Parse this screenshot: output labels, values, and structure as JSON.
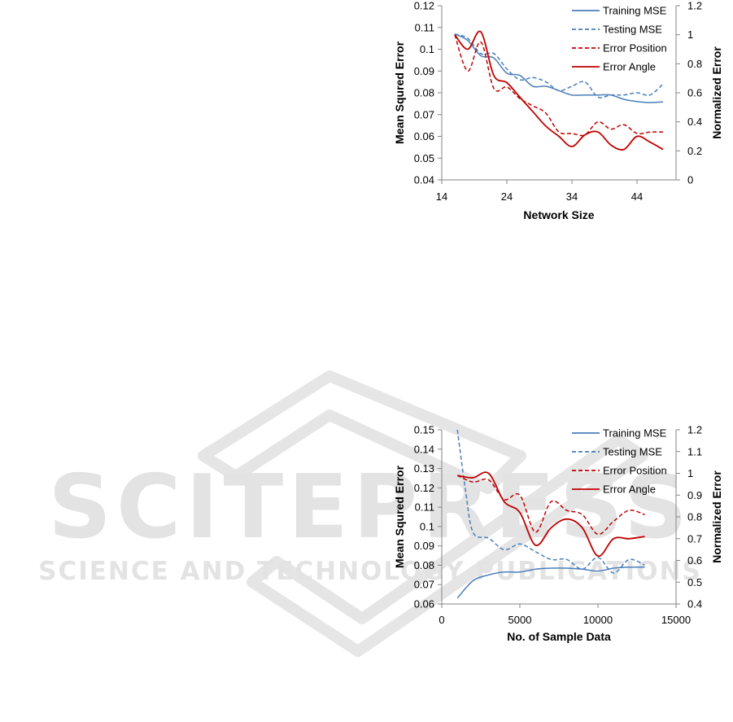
{
  "watermark": {
    "main_text": "SCITEPRESS",
    "sub_text": "SCIENCE AND TECHNOLOGY PUBLICATIONS",
    "color": "#d9d9d9"
  },
  "colors": {
    "training": "#4a7ebb",
    "testing": "#4a7ebb",
    "position": "#c00000",
    "angle": "#c00000"
  },
  "chart_data": [
    {
      "type": "line",
      "xlabel": "Network Size",
      "ylabel": "Mean Squred Error",
      "y2label": "Normalized Error",
      "xlim": [
        14,
        50
      ],
      "xticks": [
        14,
        24,
        34,
        44
      ],
      "ylim": [
        0.04,
        0.12
      ],
      "yticks": [
        "0.04",
        "0.05",
        "0.06",
        "0.07",
        "0.08",
        "0.09",
        "0.1",
        "0.11",
        "0.12"
      ],
      "y2lim": [
        0,
        1.2
      ],
      "y2ticks": [
        "0",
        "0.2",
        "0.4",
        "0.6",
        "0.8",
        "1",
        "1.2"
      ],
      "legend_position": "top-right",
      "series": [
        {
          "name": "Training MSE",
          "axis": "y",
          "style": "solid",
          "color_key": "training",
          "x": [
            16,
            18,
            20,
            22,
            24,
            26,
            28,
            30,
            32,
            34,
            36,
            38,
            40,
            42,
            44,
            46,
            48
          ],
          "y": [
            0.107,
            0.104,
            0.097,
            0.096,
            0.089,
            0.088,
            0.083,
            0.083,
            0.081,
            0.079,
            0.079,
            0.079,
            0.079,
            0.077,
            0.076,
            0.0755,
            0.0758
          ]
        },
        {
          "name": "Testing MSE",
          "axis": "y",
          "style": "dashed",
          "color_key": "testing",
          "x": [
            16,
            18,
            20,
            22,
            24,
            26,
            28,
            30,
            32,
            34,
            36,
            38,
            40,
            42,
            44,
            46,
            48
          ],
          "y": [
            0.107,
            0.105,
            0.098,
            0.098,
            0.091,
            0.086,
            0.087,
            0.085,
            0.081,
            0.083,
            0.085,
            0.078,
            0.079,
            0.079,
            0.08,
            0.079,
            0.084
          ]
        },
        {
          "name": "Error Position",
          "axis": "y2",
          "style": "dashed",
          "color_key": "position",
          "x": [
            16,
            18,
            20,
            22,
            24,
            26,
            28,
            30,
            32,
            34,
            36,
            38,
            40,
            42,
            44,
            46,
            48
          ],
          "y": [
            1.0,
            0.75,
            0.95,
            0.63,
            0.64,
            0.56,
            0.51,
            0.46,
            0.33,
            0.32,
            0.31,
            0.4,
            0.35,
            0.38,
            0.32,
            0.33,
            0.33
          ]
        },
        {
          "name": "Error Angle",
          "axis": "y2",
          "style": "solid",
          "color_key": "angle",
          "x": [
            16,
            18,
            20,
            22,
            24,
            26,
            28,
            30,
            32,
            34,
            36,
            38,
            40,
            42,
            44,
            46,
            48
          ],
          "y": [
            1.0,
            0.9,
            1.02,
            0.72,
            0.67,
            0.57,
            0.47,
            0.37,
            0.3,
            0.23,
            0.31,
            0.33,
            0.24,
            0.21,
            0.3,
            0.26,
            0.21
          ]
        }
      ]
    },
    {
      "type": "line",
      "xlabel": "No. of Sample Data",
      "ylabel": "Mean Squred Error",
      "y2label": "Normalized Error",
      "xlim": [
        0,
        15000
      ],
      "xticks": [
        0,
        5000,
        10000,
        15000
      ],
      "ylim": [
        0.06,
        0.15
      ],
      "yticks": [
        "0.06",
        "0.07",
        "0.08",
        "0.09",
        "0.1",
        "0.11",
        "0.12",
        "0.13",
        "0.14",
        "0.15"
      ],
      "y2lim": [
        0.4,
        1.2
      ],
      "y2ticks": [
        "0.4",
        "0.5",
        "0.6",
        "0.7",
        "0.8",
        "0.9",
        "1",
        "1.1",
        "1.2"
      ],
      "legend_position": "top-right",
      "series": [
        {
          "name": "Training MSE",
          "axis": "y",
          "style": "solid",
          "color_key": "training",
          "x": [
            1000,
            2000,
            3000,
            4000,
            5000,
            6000,
            7000,
            8000,
            9000,
            10000,
            11000,
            12000,
            13000
          ],
          "y": [
            0.063,
            0.072,
            0.075,
            0.0765,
            0.0765,
            0.078,
            0.0785,
            0.0785,
            0.078,
            0.077,
            0.0785,
            0.079,
            0.079
          ]
        },
        {
          "name": "Testing MSE",
          "axis": "y",
          "style": "dashed",
          "color_key": "testing",
          "x": [
            1000,
            1500,
            2000,
            3000,
            4000,
            5000,
            6000,
            7000,
            8000,
            9000,
            10000,
            11000,
            12000,
            13000
          ],
          "y": [
            0.15,
            0.12,
            0.097,
            0.094,
            0.088,
            0.091,
            0.087,
            0.083,
            0.083,
            0.078,
            0.084,
            0.076,
            0.083,
            0.08
          ]
        },
        {
          "name": "Error Position",
          "axis": "y2",
          "style": "dashed",
          "color_key": "position",
          "x": [
            1000,
            2000,
            3000,
            4000,
            5000,
            6000,
            7000,
            8000,
            9000,
            10000,
            11000,
            12000,
            13000
          ],
          "y": [
            0.99,
            0.96,
            0.97,
            0.88,
            0.9,
            0.73,
            0.87,
            0.83,
            0.81,
            0.72,
            0.78,
            0.83,
            0.81
          ]
        },
        {
          "name": "Error Angle",
          "axis": "y2",
          "style": "solid",
          "color_key": "angle",
          "x": [
            1000,
            2000,
            3000,
            4000,
            5000,
            6000,
            7000,
            8000,
            9000,
            10000,
            11000,
            12000,
            13000
          ],
          "y": [
            0.99,
            0.98,
            1.0,
            0.87,
            0.82,
            0.67,
            0.75,
            0.79,
            0.75,
            0.62,
            0.7,
            0.7,
            0.71
          ]
        }
      ]
    }
  ]
}
